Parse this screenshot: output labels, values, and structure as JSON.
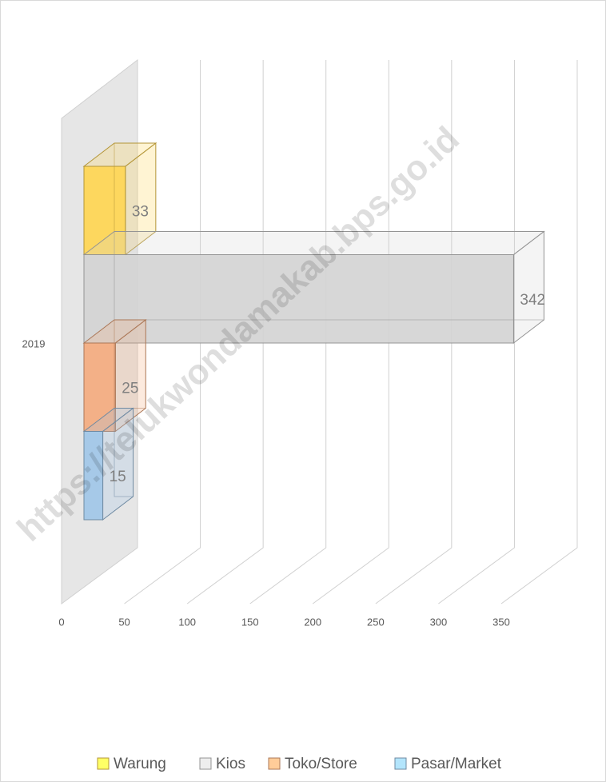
{
  "chart_data": {
    "type": "bar3d_horizontal",
    "categories": [
      "2019"
    ],
    "series": [
      {
        "name": "Warung",
        "color": "#ffd54f",
        "legend_color": "#ffff66",
        "values": [
          33
        ]
      },
      {
        "name": "Kios",
        "color": "#d3d3d3",
        "legend_color": "#eeeeee",
        "values": [
          342
        ]
      },
      {
        "name": "Toko/Store",
        "color": "#f4aa7c",
        "legend_color": "#ffcc99",
        "values": [
          25
        ]
      },
      {
        "name": "Pasar/Market",
        "color": "#9fc5e8",
        "legend_color": "#b3e5fc",
        "values": [
          15
        ]
      }
    ],
    "xlim": [
      0,
      350
    ],
    "xticks": [
      0,
      50,
      100,
      150,
      200,
      250,
      300,
      350
    ],
    "grid": true,
    "legend": "bottom",
    "watermark": "https://telukwondamakab.bps.go.id"
  }
}
